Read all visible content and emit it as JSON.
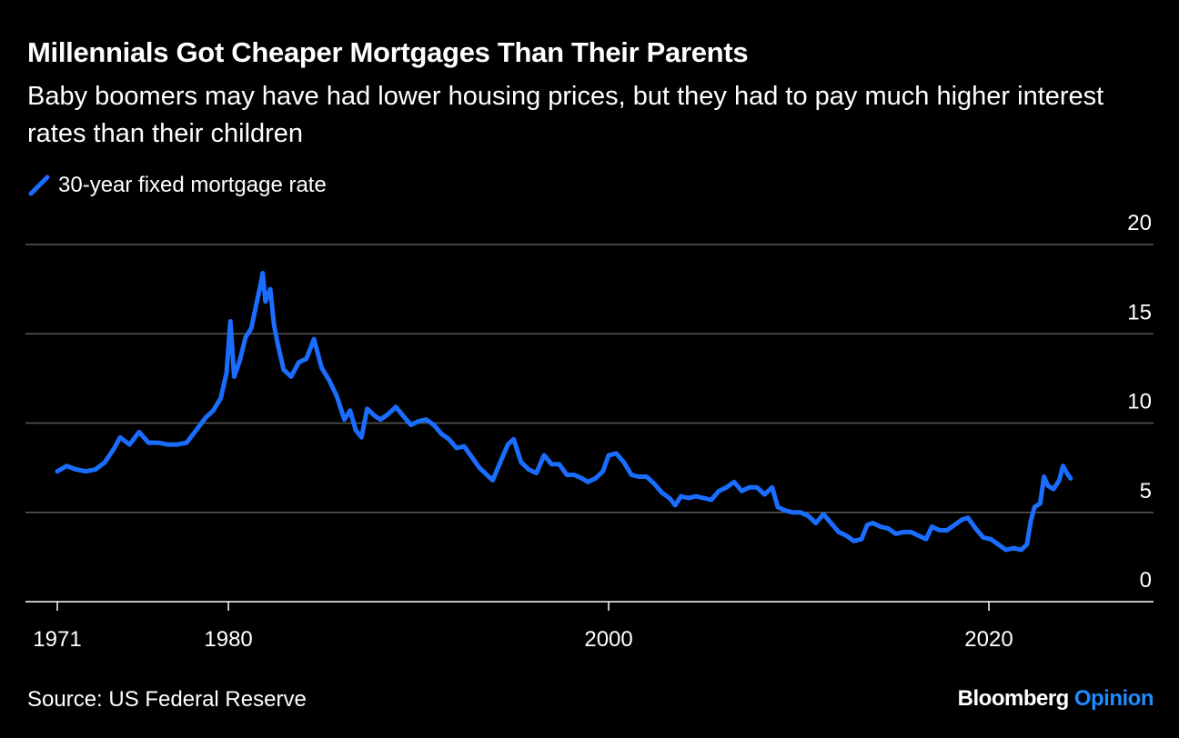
{
  "header": {
    "title": "Millennials Got Cheaper Mortgages Than Their Parents",
    "subtitle": "Baby boomers may have had lower housing prices, but they had to pay much higher interest rates than their children"
  },
  "footer": {
    "source": "Source: US Federal Reserve",
    "brand_name": "Bloomberg",
    "brand_suffix": "Opinion"
  },
  "colors": {
    "background": "#000000",
    "line": "#1a6dff",
    "grid": "#5a5a5a",
    "text": "#ffffff",
    "brand_accent": "#1f8bff"
  },
  "legend_icon": "diagonal-line-swatch",
  "chart_data": {
    "type": "line",
    "title": "Millennials Got Cheaper Mortgages Than Their Parents",
    "subtitle": "Baby boomers may have had lower housing prices, but they had to pay much higher interest rates than their children",
    "xlabel": "",
    "ylabel": "",
    "xlim": [
      1971,
      2024.5
    ],
    "ylim": [
      0,
      20
    ],
    "x_ticks": [
      1971,
      1980,
      2000,
      2020
    ],
    "x_tick_labels": [
      "1971",
      "1980",
      "2000",
      "2020"
    ],
    "y_ticks": [
      0,
      5,
      10,
      15,
      20
    ],
    "y_tick_labels": [
      "0",
      "5",
      "10",
      "15",
      "20"
    ],
    "y_axis_side": "right",
    "grid": true,
    "legend_position": "top-left",
    "series": [
      {
        "name": "30-year fixed mortgage rate",
        "x": [
          1971,
          1971.5,
          1972,
          1972.5,
          1973,
          1973.5,
          1974,
          1974.3,
          1974.8,
          1975.3,
          1975.8,
          1976.3,
          1976.8,
          1977.3,
          1977.8,
          1978.3,
          1978.8,
          1979.2,
          1979.6,
          1979.9,
          1980.1,
          1980.3,
          1980.6,
          1980.9,
          1981.2,
          1981.5,
          1981.7,
          1981.8,
          1981.95,
          1982.2,
          1982.4,
          1982.6,
          1982.9,
          1983.3,
          1983.7,
          1984.1,
          1984.5,
          1984.9,
          1985.3,
          1985.7,
          1986.1,
          1986.4,
          1986.7,
          1987.0,
          1987.3,
          1987.7,
          1988.0,
          1988.4,
          1988.8,
          1989.2,
          1989.6,
          1990.0,
          1990.4,
          1990.8,
          1991.2,
          1991.6,
          1992.0,
          1992.4,
          1992.8,
          1993.2,
          1993.6,
          1993.9,
          1994.3,
          1994.7,
          1995.0,
          1995.4,
          1995.8,
          1996.2,
          1996.6,
          1997.0,
          1997.4,
          1997.8,
          1998.2,
          1998.6,
          1998.9,
          1999.3,
          1999.7,
          2000.0,
          2000.4,
          2000.8,
          2001.2,
          2001.6,
          2002.0,
          2002.4,
          2002.8,
          2003.2,
          2003.5,
          2003.8,
          2004.2,
          2004.6,
          2005.0,
          2005.4,
          2005.8,
          2006.2,
          2006.6,
          2007.0,
          2007.4,
          2007.8,
          2008.2,
          2008.6,
          2008.9,
          2009.3,
          2009.7,
          2010.1,
          2010.5,
          2010.9,
          2011.3,
          2011.7,
          2012.1,
          2012.5,
          2012.9,
          2013.3,
          2013.6,
          2013.9,
          2014.3,
          2014.7,
          2015.1,
          2015.5,
          2015.9,
          2016.3,
          2016.7,
          2017.0,
          2017.4,
          2017.8,
          2018.2,
          2018.6,
          2018.9,
          2019.3,
          2019.7,
          2020.1,
          2020.5,
          2020.9,
          2021.3,
          2021.7,
          2022.0,
          2022.2,
          2022.4,
          2022.7,
          2022.9,
          2023.1,
          2023.4,
          2023.7,
          2023.9,
          2024.1,
          2024.3
        ],
        "values": [
          7.3,
          7.6,
          7.4,
          7.3,
          7.4,
          7.8,
          8.6,
          9.2,
          8.8,
          9.5,
          8.9,
          8.9,
          8.8,
          8.8,
          8.9,
          9.6,
          10.3,
          10.7,
          11.4,
          12.8,
          15.7,
          12.6,
          13.5,
          14.8,
          15.3,
          16.8,
          17.8,
          18.4,
          16.8,
          17.5,
          15.5,
          14.4,
          13.0,
          12.6,
          13.4,
          13.6,
          14.7,
          13.1,
          12.4,
          11.5,
          10.2,
          10.7,
          9.6,
          9.2,
          10.8,
          10.4,
          10.2,
          10.5,
          10.9,
          10.4,
          9.9,
          10.1,
          10.2,
          9.9,
          9.4,
          9.1,
          8.6,
          8.7,
          8.1,
          7.5,
          7.1,
          6.8,
          7.8,
          8.8,
          9.1,
          7.8,
          7.4,
          7.2,
          8.2,
          7.7,
          7.7,
          7.1,
          7.1,
          6.9,
          6.7,
          6.9,
          7.3,
          8.2,
          8.3,
          7.8,
          7.1,
          7.0,
          7.0,
          6.6,
          6.1,
          5.8,
          5.4,
          5.9,
          5.8,
          5.9,
          5.8,
          5.7,
          6.2,
          6.4,
          6.7,
          6.2,
          6.4,
          6.4,
          6.0,
          6.4,
          5.3,
          5.1,
          5.0,
          5.0,
          4.8,
          4.4,
          4.9,
          4.4,
          3.9,
          3.7,
          3.4,
          3.5,
          4.3,
          4.4,
          4.2,
          4.1,
          3.8,
          3.9,
          3.9,
          3.7,
          3.5,
          4.2,
          4.0,
          4.0,
          4.3,
          4.6,
          4.7,
          4.1,
          3.6,
          3.5,
          3.2,
          2.9,
          3.0,
          2.9,
          3.2,
          4.5,
          5.3,
          5.5,
          7.0,
          6.5,
          6.3,
          6.8,
          7.6,
          7.2,
          6.9
        ]
      }
    ]
  }
}
